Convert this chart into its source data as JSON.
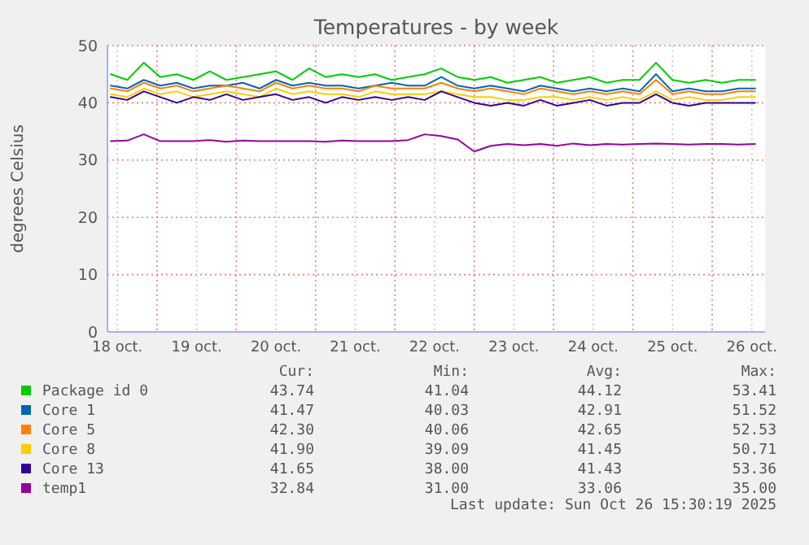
{
  "chart_data": {
    "type": "line",
    "title": "Temperatures - by week",
    "ylabel": "degrees Celsius",
    "x": [
      "2025-10-18T10:00",
      "2025-10-18T15:00",
      "2025-10-18T20:00",
      "2025-10-19T01:00",
      "2025-10-19T06:00",
      "2025-10-19T11:00",
      "2025-10-19T16:00",
      "2025-10-19T21:00",
      "2025-10-20T02:00",
      "2025-10-20T07:00",
      "2025-10-20T12:00",
      "2025-10-20T17:00",
      "2025-10-20T22:00",
      "2025-10-21T03:00",
      "2025-10-21T08:00",
      "2025-10-21T13:00",
      "2025-10-21T18:00",
      "2025-10-21T23:00",
      "2025-10-22T04:00",
      "2025-10-22T09:00",
      "2025-10-22T14:00",
      "2025-10-22T19:00",
      "2025-10-23T00:00",
      "2025-10-23T05:00",
      "2025-10-23T10:00",
      "2025-10-23T15:00",
      "2025-10-23T20:00",
      "2025-10-24T01:00",
      "2025-10-24T06:00",
      "2025-10-24T11:00",
      "2025-10-24T16:00",
      "2025-10-24T21:00",
      "2025-10-25T02:00",
      "2025-10-25T07:00",
      "2025-10-25T12:00",
      "2025-10-25T17:00",
      "2025-10-25T22:00",
      "2025-10-26T03:00",
      "2025-10-26T08:00",
      "2025-10-26T13:00"
    ],
    "series": [
      {
        "name": "Package id 0",
        "color": "#00cc00",
        "values": [
          45,
          44,
          47,
          44.5,
          45,
          44,
          45.5,
          44,
          44.5,
          45,
          45.5,
          44,
          46,
          44.5,
          45,
          44.5,
          45,
          44,
          44.5,
          45,
          46,
          44.5,
          44,
          44.5,
          43.5,
          44,
          44.5,
          43.5,
          44,
          44.5,
          43.5,
          44,
          44,
          47,
          44,
          43.5,
          44,
          43.5,
          44,
          44
        ]
      },
      {
        "name": "Core 1",
        "color": "#0066b3",
        "values": [
          43,
          42.5,
          44,
          43,
          43.5,
          42.5,
          43,
          43,
          43.5,
          42.5,
          44,
          43,
          43.5,
          43,
          43,
          42.5,
          43,
          43.5,
          43,
          43,
          44.5,
          43,
          42.5,
          43,
          42.5,
          42,
          43,
          42.5,
          42,
          42.5,
          42,
          42.5,
          42,
          45,
          42,
          42.5,
          42,
          42,
          42.5,
          42.5
        ]
      },
      {
        "name": "Core 5",
        "color": "#ff8000",
        "values": [
          42.5,
          42,
          43.5,
          42.5,
          43,
          42,
          42.5,
          43,
          42.5,
          42,
          43.5,
          42.5,
          43,
          42.5,
          42.5,
          42,
          43,
          42.5,
          42.5,
          42.5,
          43.5,
          42.5,
          42,
          42.5,
          42,
          41.5,
          42.5,
          42,
          41.5,
          42,
          41.5,
          42,
          41.5,
          44,
          41.5,
          42,
          41.5,
          41.5,
          42,
          42
        ]
      },
      {
        "name": "Core 8",
        "color": "#ffcc00",
        "values": [
          41.5,
          41,
          42.5,
          41.5,
          42,
          41,
          41.5,
          42,
          41.5,
          41,
          42.5,
          41.5,
          42,
          41.5,
          41.5,
          41,
          42,
          41.5,
          41.5,
          41.5,
          42,
          41.5,
          41,
          41,
          40.5,
          40.5,
          41,
          41,
          40.5,
          41,
          40.5,
          41,
          40.5,
          42,
          40.5,
          41,
          40.5,
          40.5,
          41,
          41
        ]
      },
      {
        "name": "Core 13",
        "color": "#330099",
        "values": [
          41,
          40.5,
          42,
          41,
          40,
          41,
          40.5,
          41.5,
          40.5,
          41,
          41.5,
          40.5,
          41,
          40,
          41,
          40.5,
          41,
          40.5,
          41,
          40.5,
          42,
          41,
          40,
          39.5,
          40,
          39.5,
          40.5,
          39.5,
          40,
          40.5,
          39.5,
          40,
          40,
          41.5,
          40,
          39.5,
          40,
          40,
          40,
          40
        ]
      },
      {
        "name": "temp1",
        "color": "#990099",
        "values": [
          33.3,
          33.4,
          34.5,
          33.3,
          33.3,
          33.3,
          33.5,
          33.2,
          33.4,
          33.3,
          33.3,
          33.3,
          33.3,
          33.2,
          33.4,
          33.3,
          33.3,
          33.3,
          33.5,
          34.5,
          34.2,
          33.6,
          31.5,
          32.5,
          32.8,
          32.6,
          32.8,
          32.5,
          32.9,
          32.6,
          32.8,
          32.7,
          32.8,
          32.9,
          32.8,
          32.7,
          32.8,
          32.8,
          32.7,
          32.8
        ]
      }
    ],
    "xlim": [
      "2025-10-18T09:00",
      "2025-10-26T16:00"
    ],
    "xticks": [
      {
        "value": "2025-10-18T12:00",
        "label": "18 oct."
      },
      {
        "value": "2025-10-19T00:00",
        "label": null
      },
      {
        "value": "2025-10-19T12:00",
        "label": "19 oct."
      },
      {
        "value": "2025-10-20T00:00",
        "label": null
      },
      {
        "value": "2025-10-20T12:00",
        "label": "20 oct."
      },
      {
        "value": "2025-10-21T00:00",
        "label": null
      },
      {
        "value": "2025-10-21T12:00",
        "label": "21 oct."
      },
      {
        "value": "2025-10-22T00:00",
        "label": null
      },
      {
        "value": "2025-10-22T12:00",
        "label": "22 oct."
      },
      {
        "value": "2025-10-23T00:00",
        "label": null
      },
      {
        "value": "2025-10-23T12:00",
        "label": "23 oct."
      },
      {
        "value": "2025-10-24T00:00",
        "label": null
      },
      {
        "value": "2025-10-24T12:00",
        "label": "24 oct."
      },
      {
        "value": "2025-10-25T00:00",
        "label": null
      },
      {
        "value": "2025-10-25T12:00",
        "label": "25 oct."
      },
      {
        "value": "2025-10-26T00:00",
        "label": null
      },
      {
        "value": "2025-10-26T12:00",
        "label": "26 oct."
      }
    ],
    "ylim": [
      0,
      50
    ],
    "yticks": [
      0,
      10,
      20,
      30,
      40,
      50
    ],
    "grid": true,
    "legend": "bottom",
    "annotations": [
      "Cur:",
      "Min:",
      "Avg:",
      "Max:",
      "43.74",
      "41.04",
      "44.12",
      "53.41",
      "41.47",
      "40.03",
      "42.91",
      "51.52",
      "42.30",
      "40.06",
      "42.65",
      "52.53",
      "41.90",
      "39.09",
      "41.45",
      "50.71",
      "41.65",
      "38.00",
      "41.43",
      "53.36",
      "32.84",
      "31.00",
      "33.06",
      "35.00",
      "Last update: Sun Oct 26 15:30:19 2025"
    ]
  }
}
